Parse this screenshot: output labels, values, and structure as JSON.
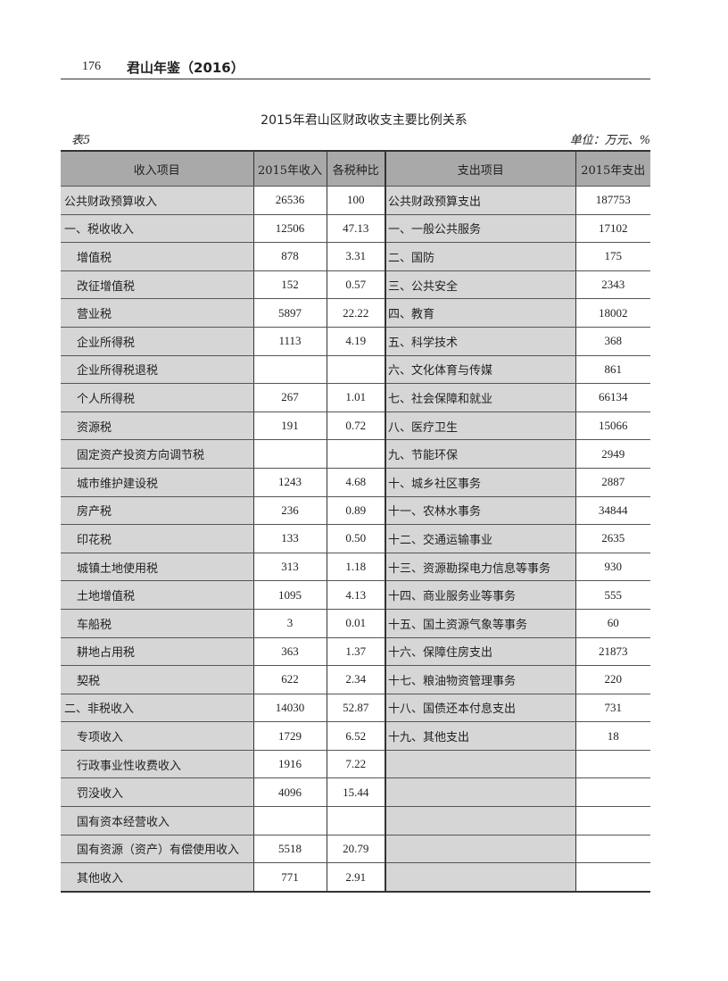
{
  "header": {
    "page_number": "176",
    "book_title": "君山年鉴（2016）"
  },
  "table_title": "2015年君山区财政收支主要比例关系",
  "table_number": "表5",
  "unit": "单位：万元、%",
  "columns": [
    "收入项目",
    "2015年收入",
    "各税种比",
    "支出项目",
    "2015年支出"
  ],
  "rows": [
    {
      "income_item": "公共财政预算收入",
      "income": "26536",
      "ratio": "100",
      "expense_item": "公共财政预算支出",
      "expense": "187753",
      "sub": false
    },
    {
      "income_item": "一、税收收入",
      "income": "12506",
      "ratio": "47.13",
      "expense_item": "一、一般公共服务",
      "expense": "17102",
      "sub": false
    },
    {
      "income_item": "增值税",
      "income": "878",
      "ratio": "3.31",
      "expense_item": "二、国防",
      "expense": "175",
      "sub": true
    },
    {
      "income_item": "改征增值税",
      "income": "152",
      "ratio": "0.57",
      "expense_item": "三、公共安全",
      "expense": "2343",
      "sub": true
    },
    {
      "income_item": "营业税",
      "income": "5897",
      "ratio": "22.22",
      "expense_item": "四、教育",
      "expense": "18002",
      "sub": true
    },
    {
      "income_item": "企业所得税",
      "income": "1113",
      "ratio": "4.19",
      "expense_item": "五、科学技术",
      "expense": "368",
      "sub": true
    },
    {
      "income_item": "企业所得税退税",
      "income": "",
      "ratio": "",
      "expense_item": "六、文化体育与传媒",
      "expense": "861",
      "sub": true
    },
    {
      "income_item": "个人所得税",
      "income": "267",
      "ratio": "1.01",
      "expense_item": "七、社会保障和就业",
      "expense": "66134",
      "sub": true
    },
    {
      "income_item": "资源税",
      "income": "191",
      "ratio": "0.72",
      "expense_item": "八、医疗卫生",
      "expense": "15066",
      "sub": true
    },
    {
      "income_item": "固定资产投资方向调节税",
      "income": "",
      "ratio": "",
      "expense_item": "九、节能环保",
      "expense": "2949",
      "sub": true
    },
    {
      "income_item": "城市维护建设税",
      "income": "1243",
      "ratio": "4.68",
      "expense_item": "十、城乡社区事务",
      "expense": "2887",
      "sub": true
    },
    {
      "income_item": "房产税",
      "income": "236",
      "ratio": "0.89",
      "expense_item": "十一、农林水事务",
      "expense": "34844",
      "sub": true
    },
    {
      "income_item": "印花税",
      "income": "133",
      "ratio": "0.50",
      "expense_item": "十二、交通运输事业",
      "expense": "2635",
      "sub": true
    },
    {
      "income_item": "城镇土地使用税",
      "income": "313",
      "ratio": "1.18",
      "expense_item": "十三、资源勘探电力信息等事务",
      "expense": "930",
      "sub": true
    },
    {
      "income_item": "土地增值税",
      "income": "1095",
      "ratio": "4.13",
      "expense_item": "十四、商业服务业等事务",
      "expense": "555",
      "sub": true
    },
    {
      "income_item": "车船税",
      "income": "3",
      "ratio": "0.01",
      "expense_item": "十五、国土资源气象等事务",
      "expense": "60",
      "sub": true
    },
    {
      "income_item": "耕地占用税",
      "income": "363",
      "ratio": "1.37",
      "expense_item": "十六、保障住房支出",
      "expense": "21873",
      "sub": true
    },
    {
      "income_item": "契税",
      "income": "622",
      "ratio": "2.34",
      "expense_item": "十七、粮油物资管理事务",
      "expense": "220",
      "sub": true
    },
    {
      "income_item": "二、非税收入",
      "income": "14030",
      "ratio": "52.87",
      "expense_item": "十八、国债还本付息支出",
      "expense": "731",
      "sub": false
    },
    {
      "income_item": "专项收入",
      "income": "1729",
      "ratio": "6.52",
      "expense_item": "十九、其他支出",
      "expense": "18",
      "sub": true
    },
    {
      "income_item": "行政事业性收费收入",
      "income": "1916",
      "ratio": "7.22",
      "expense_item": "",
      "expense": "",
      "sub": true
    },
    {
      "income_item": "罚没收入",
      "income": "4096",
      "ratio": "15.44",
      "expense_item": "",
      "expense": "",
      "sub": true
    },
    {
      "income_item": "国有资本经营收入",
      "income": "",
      "ratio": "",
      "expense_item": "",
      "expense": "",
      "sub": true
    },
    {
      "income_item": "国有资源（资产）有偿使用收入",
      "income": "5518",
      "ratio": "20.79",
      "expense_item": "",
      "expense": "",
      "sub": true
    },
    {
      "income_item": "其他收入",
      "income": "771",
      "ratio": "2.91",
      "expense_item": "",
      "expense": "",
      "sub": true
    }
  ]
}
